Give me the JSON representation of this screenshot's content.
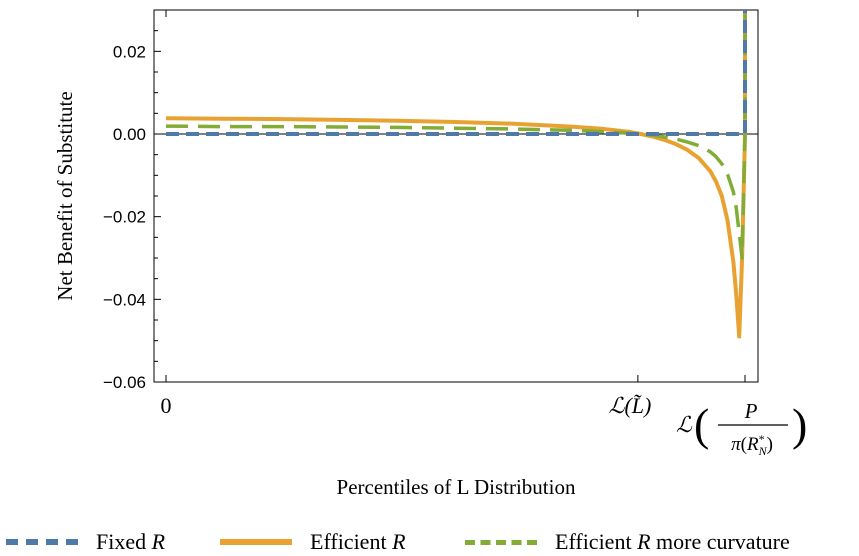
{
  "chart_data": {
    "type": "line",
    "title": "",
    "xlabel": "Percentiles of L Distribution",
    "ylabel": "Net Benefit of Substitute",
    "ylim": [
      -0.06,
      0.03
    ],
    "yticks": [
      0.02,
      0.0,
      -0.02,
      -0.04,
      -0.06
    ],
    "ytick_labels": [
      "0.02",
      "0.00",
      "−0.02",
      "−0.04",
      "−0.06"
    ],
    "xlim": [
      0,
      1
    ],
    "xticks": [
      0,
      0.815,
      1.0
    ],
    "xtick_labels": [
      "0",
      "ℒ(L̃)",
      "ℒ(P / π(R*_N))"
    ],
    "grid": false,
    "legend_placement": "bottom",
    "series": [
      {
        "name": "Fixed R",
        "color": "#4f79a6",
        "style": "dashed",
        "x": [
          0,
          0.2,
          0.4,
          0.6,
          0.8,
          0.9,
          0.95,
          0.99,
          1.0,
          1.0,
          1.0
        ],
        "y": [
          0,
          0,
          0,
          0,
          0,
          0,
          0,
          0,
          0,
          0.015,
          0.03
        ]
      },
      {
        "name": "Efficient R",
        "color": "#e8a232",
        "style": "solid",
        "x": [
          0,
          0.1,
          0.2,
          0.3,
          0.4,
          0.5,
          0.6,
          0.7,
          0.75,
          0.8,
          0.82,
          0.84,
          0.86,
          0.88,
          0.9,
          0.92,
          0.94,
          0.95,
          0.96,
          0.97,
          0.98,
          0.985,
          0.99,
          0.995,
          1.0,
          1.0,
          1.0
        ],
        "y": [
          0.0038,
          0.0037,
          0.0036,
          0.0034,
          0.0032,
          0.0029,
          0.0025,
          0.0018,
          0.0013,
          0.0005,
          0.0,
          -0.0006,
          -0.0014,
          -0.0024,
          -0.0038,
          -0.0058,
          -0.009,
          -0.0115,
          -0.015,
          -0.021,
          -0.031,
          -0.039,
          -0.049,
          -0.03,
          0.0,
          0.015,
          0.03
        ]
      },
      {
        "name": "Efficient R more curvature",
        "color": "#82ac36",
        "style": "dashed",
        "x": [
          0,
          0.1,
          0.2,
          0.3,
          0.4,
          0.5,
          0.6,
          0.7,
          0.75,
          0.8,
          0.82,
          0.84,
          0.86,
          0.88,
          0.9,
          0.92,
          0.94,
          0.95,
          0.96,
          0.97,
          0.98,
          0.985,
          0.99,
          0.995,
          1.0,
          1.0
        ],
        "y": [
          0.0019,
          0.0018,
          0.0018,
          0.0017,
          0.0016,
          0.0014,
          0.0012,
          0.0009,
          0.0006,
          0.0002,
          0.0,
          -0.0003,
          -0.0007,
          -0.0012,
          -0.0019,
          -0.0028,
          -0.0043,
          -0.0055,
          -0.0072,
          -0.0098,
          -0.014,
          -0.018,
          -0.024,
          -0.03,
          0.0,
          0.03
        ]
      }
    ]
  }
}
